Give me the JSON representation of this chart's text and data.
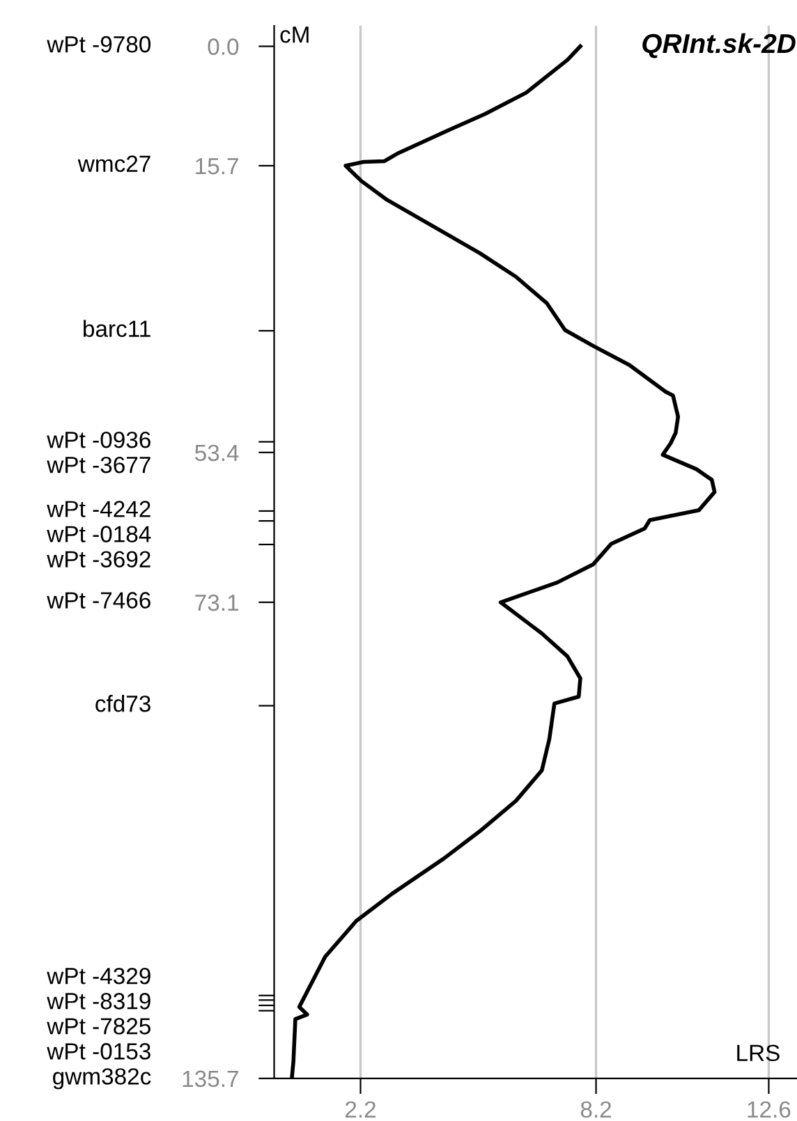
{
  "chart_data": {
    "type": "line",
    "title": "QRInt.sk-2D",
    "xlabel": "LRS",
    "ylabel": "cM",
    "xlim": [
      0,
      13.3
    ],
    "xticks": [
      2.2,
      8.2,
      12.6
    ],
    "ylim": [
      135.7,
      -2.7
    ],
    "yticks": [
      {
        "value": 0,
        "label": "0.0"
      },
      {
        "value": 15.7,
        "label": "15.7"
      },
      {
        "value": 37.4,
        "label": null
      },
      {
        "value": 52.0,
        "label": null
      },
      {
        "value": 53.4,
        "label": "53.4"
      },
      {
        "value": 61.1,
        "label": null
      },
      {
        "value": 62.4,
        "label": null
      },
      {
        "value": 65.5,
        "label": null
      },
      {
        "value": 73.1,
        "label": "73.1"
      },
      {
        "value": 86.7,
        "label": null
      },
      {
        "value": 124.8,
        "label": null
      },
      {
        "value": 125.4,
        "label": null
      },
      {
        "value": 126.1,
        "label": null
      },
      {
        "value": 126.8,
        "label": null
      },
      {
        "value": 135.7,
        "label": "135.7"
      }
    ],
    "grid": "x",
    "legend": false,
    "marker": "none",
    "line_style": "solid",
    "annotations": [
      "wPt -9780",
      "wmc27",
      "barc11",
      "wPt -0936",
      "wPt -3677",
      "wPt -4242",
      "wPt -0184",
      "wPt -3692",
      "wPt -7466",
      "cfd73",
      "wPt -4329",
      "wPt -8319",
      "wPt -7825",
      "wPt -0153",
      "gwm382c"
    ],
    "series": [
      {
        "color": "#000000",
        "x": [
          7.8,
          7.47,
          6.42,
          5.37,
          4.45,
          3.14,
          2.81,
          2.28,
          1.82,
          2.22,
          2.88,
          3.93,
          5.24,
          6.16,
          6.95,
          7.41,
          8.13,
          9.05,
          9.97,
          10.16,
          10.29,
          10.23,
          10.1,
          9.9,
          10.76,
          11.15,
          11.22,
          10.82,
          9.57,
          9.44,
          8.59,
          8.13,
          7.21,
          5.77,
          6.82,
          7.47,
          7.8,
          7.76,
          7.14,
          7.01,
          6.82,
          6.16,
          5.24,
          4.32,
          3.01,
          2.09,
          1.3,
          0.84,
          0.64,
          0.84,
          0.54,
          0.49,
          0.45
        ],
        "values": [
          0,
          1.8,
          6.1,
          8.9,
          11.0,
          14.1,
          15.1,
          15.2,
          15.7,
          17.7,
          20.2,
          23.3,
          27.2,
          30.3,
          33.8,
          37.3,
          39.4,
          41.9,
          45.4,
          45.9,
          48.7,
          50.8,
          52.2,
          53.7,
          55.6,
          57.0,
          58.6,
          61.0,
          62.3,
          63.4,
          65.4,
          68.1,
          70.5,
          73.1,
          77.2,
          80.2,
          83.1,
          85.5,
          86.4,
          91.1,
          95.2,
          99.2,
          103.2,
          106.8,
          111.4,
          115.0,
          119.7,
          124.3,
          126.3,
          127.3,
          127.9,
          133.5,
          135.7
        ]
      }
    ]
  }
}
